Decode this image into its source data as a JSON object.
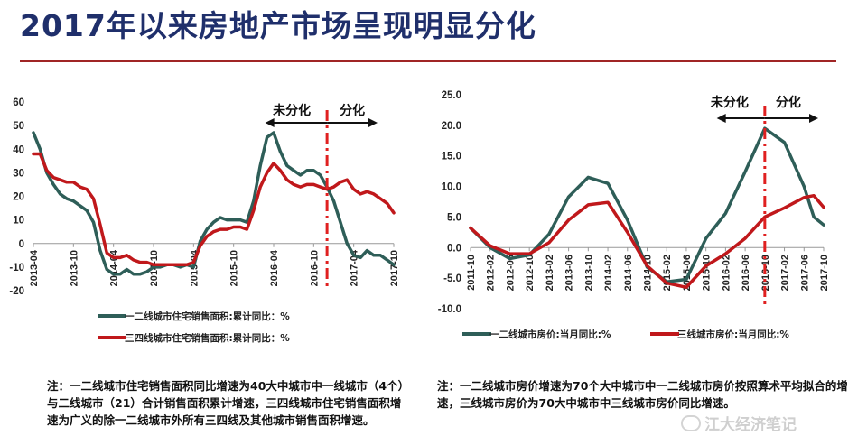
{
  "title": "2017年以来房地产市场呈现明显分化",
  "notes": {
    "left": "注：一二线城市住宅销售面积同比增速为40大中城市中一线城市（4个）与二线城市（21）合计销售面积累计增速，三四线城市住宅销售面积增速为广义的除一二线城市外所有三四线及其他城市销售面积增速。",
    "right": "注：一二线城市房价增速为70个大中城市中一二线城市房价按照算术平均拟合的增速，三线城市房价为70大中城市中三线城市房价同比增速。"
  },
  "watermark": "江大经济笔记",
  "colors": {
    "series1": "#2e5e58",
    "series2": "#c0181b",
    "divider": "#e02020",
    "title": "#1f2f6b"
  },
  "chart_data": [
    {
      "type": "line",
      "title": "",
      "ylim": [
        -20,
        60
      ],
      "yticks": [
        -20,
        -10,
        0,
        10,
        20,
        30,
        40,
        50,
        60
      ],
      "x_range": [
        "2013-04",
        "2017-10"
      ],
      "xtick_labels": [
        "2013-04",
        "2013-10",
        "2014-04",
        "2014-10",
        "2015-04",
        "2015-10",
        "2016-04",
        "2016-10",
        "2017-04",
        "2017-10"
      ],
      "annotations": {
        "left": "未分化",
        "right": "分化",
        "divider_x": "2016-12"
      },
      "series": [
        {
          "name": "一二线城市住宅销售面积:累计同比：%",
          "x": [
            "2013-04",
            "2013-05",
            "2013-06",
            "2013-07",
            "2013-08",
            "2013-09",
            "2013-10",
            "2013-11",
            "2013-12",
            "2014-01",
            "2014-02",
            "2014-03",
            "2014-04",
            "2014-05",
            "2014-06",
            "2014-07",
            "2014-08",
            "2014-09",
            "2014-10",
            "2014-11",
            "2014-12",
            "2015-01",
            "2015-02",
            "2015-03",
            "2015-04",
            "2015-05",
            "2015-06",
            "2015-07",
            "2015-08",
            "2015-09",
            "2015-10",
            "2015-11",
            "2015-12",
            "2016-01",
            "2016-02",
            "2016-03",
            "2016-04",
            "2016-05",
            "2016-06",
            "2016-07",
            "2016-08",
            "2016-09",
            "2016-10",
            "2016-11",
            "2016-12",
            "2017-01",
            "2017-02",
            "2017-03",
            "2017-04",
            "2017-05",
            "2017-06",
            "2017-07",
            "2017-08",
            "2017-09",
            "2017-10"
          ],
          "values": [
            47,
            40,
            30,
            25,
            21,
            19,
            18,
            16,
            14,
            9,
            -3,
            -11,
            -13,
            -13,
            -11,
            -13,
            -13,
            -12,
            -10,
            -10,
            -9,
            -9,
            -10,
            -9,
            -10,
            1,
            6,
            9,
            11,
            10,
            10,
            10,
            9,
            18,
            33,
            45,
            47,
            39,
            33,
            31,
            29,
            31,
            31,
            29,
            24,
            18,
            9,
            0,
            -5,
            -6,
            -3,
            -5,
            -5,
            -7,
            -9
          ]
        },
        {
          "name": "三四线城市住宅销售面积:累计同比：%",
          "x": [
            "2013-04",
            "2013-05",
            "2013-06",
            "2013-07",
            "2013-08",
            "2013-09",
            "2013-10",
            "2013-11",
            "2013-12",
            "2014-01",
            "2014-02",
            "2014-03",
            "2014-04",
            "2014-05",
            "2014-06",
            "2014-07",
            "2014-08",
            "2014-09",
            "2014-10",
            "2014-11",
            "2014-12",
            "2015-01",
            "2015-02",
            "2015-03",
            "2015-04",
            "2015-05",
            "2015-06",
            "2015-07",
            "2015-08",
            "2015-09",
            "2015-10",
            "2015-11",
            "2015-12",
            "2016-01",
            "2016-02",
            "2016-03",
            "2016-04",
            "2016-05",
            "2016-06",
            "2016-07",
            "2016-08",
            "2016-09",
            "2016-10",
            "2016-11",
            "2016-12",
            "2017-01",
            "2017-02",
            "2017-03",
            "2017-04",
            "2017-05",
            "2017-06",
            "2017-07",
            "2017-08",
            "2017-09",
            "2017-10"
          ],
          "values": [
            38,
            38,
            31,
            28,
            27,
            26,
            26,
            24,
            23,
            19,
            8,
            -4,
            -6,
            -6,
            -5,
            -7,
            -8,
            -8,
            -9,
            -9,
            -9,
            -9,
            -9,
            -9,
            -8,
            -1,
            3,
            5,
            6,
            6,
            7,
            7,
            6,
            14,
            24,
            30,
            34,
            31,
            27,
            25,
            24,
            25,
            25,
            24,
            23,
            24,
            26,
            27,
            23,
            21,
            22,
            21,
            19,
            17,
            13
          ]
        }
      ]
    },
    {
      "type": "line",
      "title": "",
      "ylim": [
        -10,
        25
      ],
      "yticks": [
        "-10.0",
        "-5.0",
        "0.0",
        "5.0",
        "10.0",
        "15.0",
        "20.0",
        "25.0"
      ],
      "x_range": [
        "2011-10",
        "2017-10"
      ],
      "xtick_labels": [
        "2011-10",
        "2012-02",
        "2012-06",
        "2012-10",
        "2013-02",
        "2013-06",
        "2013-10",
        "2014-02",
        "2014-06",
        "2014-10",
        "2015-02",
        "2015-06",
        "2015-10",
        "2016-02",
        "2016-06",
        "2016-10",
        "2017-02",
        "2017-06",
        "2017-10"
      ],
      "annotations": {
        "left": "未分化",
        "right": "分化",
        "divider_x": "2016-10"
      },
      "series": [
        {
          "name": "一二线城市房价:当月同比:%",
          "x": [
            "2011-10",
            "2012-02",
            "2012-06",
            "2012-10",
            "2013-02",
            "2013-06",
            "2013-10",
            "2014-02",
            "2014-06",
            "2014-10",
            "2015-02",
            "2015-06",
            "2015-10",
            "2016-02",
            "2016-06",
            "2016-10",
            "2017-02",
            "2017-06",
            "2017-08",
            "2017-10"
          ],
          "values": [
            3.2,
            0.0,
            -1.8,
            -1.2,
            2.2,
            8.3,
            11.5,
            10.5,
            4.5,
            -3.2,
            -5.6,
            -5.2,
            1.5,
            5.6,
            12.4,
            19.5,
            17.2,
            10.0,
            5.0,
            3.7
          ]
        },
        {
          "name": "三线城市房价:当月同比:%",
          "x": [
            "2011-10",
            "2012-02",
            "2012-06",
            "2012-10",
            "2013-02",
            "2013-06",
            "2013-10",
            "2014-02",
            "2014-06",
            "2014-10",
            "2015-02",
            "2015-06",
            "2015-10",
            "2016-02",
            "2016-06",
            "2016-10",
            "2017-02",
            "2017-06",
            "2017-08",
            "2017-10"
          ],
          "values": [
            3.2,
            0.3,
            -1.0,
            -1.0,
            0.8,
            4.5,
            7.0,
            7.4,
            2.5,
            -3.0,
            -5.8,
            -6.5,
            -3.0,
            -1.0,
            1.5,
            5.0,
            6.5,
            8.2,
            8.5,
            6.6
          ]
        }
      ]
    }
  ]
}
